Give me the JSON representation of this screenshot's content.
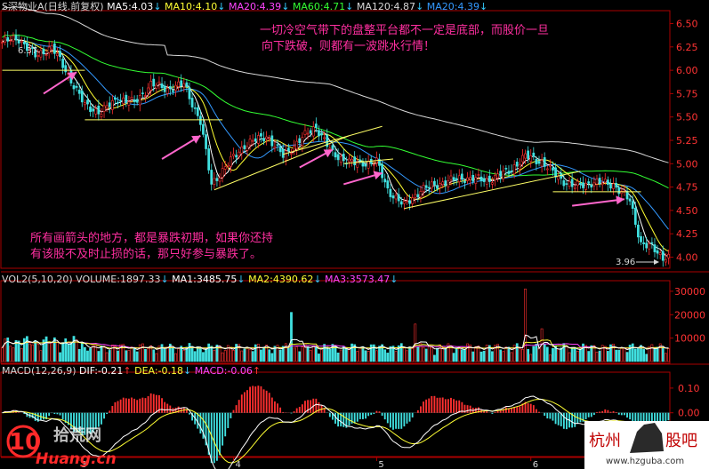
{
  "header": {
    "main": [
      {
        "text": "S深物业A(日线.前复权)",
        "color": "#d8d8d8"
      },
      {
        "text": "MA5:4.03",
        "color": "#ffffff",
        "arrow": "down"
      },
      {
        "text": "MA10:4.10",
        "color": "#ffff33",
        "arrow": "down"
      },
      {
        "text": "MA20:4.39",
        "color": "#ff44ff",
        "arrow": "down"
      },
      {
        "text": "MA60:4.71",
        "color": "#33ff33",
        "arrow": "down"
      },
      {
        "text": "MA120:4.87",
        "color": "#d8d8d8",
        "arrow": "down"
      },
      {
        "text": "MA20:4.39",
        "color": "#3399ff",
        "arrow": "down"
      }
    ],
    "volume": [
      {
        "text": "VOL2(5,10,20)",
        "color": "#d8d8d8"
      },
      {
        "text": "VOLUME:1897.33",
        "color": "#d8d8d8",
        "arrow": "down"
      },
      {
        "text": "MA1:3485.75",
        "color": "#ffffff",
        "arrow": "down"
      },
      {
        "text": "MA2:4390.62",
        "color": "#ffff33",
        "arrow": "down"
      },
      {
        "text": "MA3:3573.47",
        "color": "#ff44ff",
        "arrow": "down"
      }
    ],
    "macd": [
      {
        "text": "MACD(12,26,9)",
        "color": "#d8d8d8"
      },
      {
        "text": "DIF:-0.21",
        "color": "#ffffff",
        "arrow": "up"
      },
      {
        "text": "DEA:-0.18",
        "color": "#ffff33",
        "arrow": "down"
      },
      {
        "text": "MACD:-0.06",
        "color": "#ff44ff",
        "arrow": "up"
      }
    ]
  },
  "annotations": {
    "top_note": [
      "一切冷空气带下的盘整平台都不一定是底部，而股价一旦",
      "向下跌破，则都有一波跳水行情！"
    ],
    "bottom_note": [
      "所有画箭头的地方，都是暴跌初期，如果你还持",
      "有该股不及时止损的话，那只好参与暴跌了。"
    ],
    "high_label": "6.37",
    "low_label": "3.96"
  },
  "chart_data": [
    {
      "type": "candlestick",
      "title": "S深物业A(日线.前复权)",
      "y_ticks": [
        "6.50",
        "6.25",
        "6.00",
        "5.75",
        "5.50",
        "5.25",
        "5.00",
        "4.75",
        "4.50",
        "4.25",
        "4.00"
      ],
      "ylim": [
        3.9,
        6.6
      ],
      "x_ticks": [
        "3",
        "4",
        "5",
        "6",
        "7",
        "8",
        "9"
      ],
      "x_tick_positions": [
        14,
        42,
        68,
        96,
        124,
        152,
        180
      ],
      "n_bars": 243,
      "high": 6.37,
      "low": 3.96,
      "key_points": [
        {
          "bar": 0,
          "close": 6.3
        },
        {
          "bar": 6,
          "close": 6.34
        },
        {
          "bar": 12,
          "close": 6.15
        },
        {
          "bar": 18,
          "close": 6.25
        },
        {
          "bar": 24,
          "close": 5.95
        },
        {
          "bar": 30,
          "close": 5.62
        },
        {
          "bar": 36,
          "close": 5.55
        },
        {
          "bar": 42,
          "close": 5.7
        },
        {
          "bar": 48,
          "close": 5.65
        },
        {
          "bar": 54,
          "close": 5.85
        },
        {
          "bar": 60,
          "close": 5.8
        },
        {
          "bar": 66,
          "close": 5.85
        },
        {
          "bar": 72,
          "close": 5.45
        },
        {
          "bar": 76,
          "close": 4.78
        },
        {
          "bar": 82,
          "close": 5.0
        },
        {
          "bar": 88,
          "close": 5.2
        },
        {
          "bar": 96,
          "close": 5.3
        },
        {
          "bar": 102,
          "close": 5.08
        },
        {
          "bar": 108,
          "close": 5.25
        },
        {
          "bar": 114,
          "close": 5.4
        },
        {
          "bar": 120,
          "close": 5.1
        },
        {
          "bar": 128,
          "close": 5.0
        },
        {
          "bar": 136,
          "close": 5.02
        },
        {
          "bar": 140,
          "close": 4.72
        },
        {
          "bar": 146,
          "close": 4.55
        },
        {
          "bar": 152,
          "close": 4.72
        },
        {
          "bar": 160,
          "close": 4.8
        },
        {
          "bar": 168,
          "close": 4.85
        },
        {
          "bar": 176,
          "close": 4.82
        },
        {
          "bar": 184,
          "close": 4.92
        },
        {
          "bar": 190,
          "close": 5.08
        },
        {
          "bar": 196,
          "close": 5.02
        },
        {
          "bar": 202,
          "close": 4.85
        },
        {
          "bar": 208,
          "close": 4.75
        },
        {
          "bar": 214,
          "close": 4.8
        },
        {
          "bar": 222,
          "close": 4.78
        },
        {
          "bar": 228,
          "close": 4.6
        },
        {
          "bar": 232,
          "close": 4.15
        },
        {
          "bar": 236,
          "close": 4.1
        },
        {
          "bar": 240,
          "close": 4.0
        },
        {
          "bar": 242,
          "close": 4.03
        }
      ],
      "ma_last": {
        "MA5": 4.03,
        "MA10": 4.1,
        "MA20": 4.39,
        "MA60": 4.71,
        "MA120": 4.87
      },
      "overlay_lines": [
        {
          "kind": "horizontal",
          "bar0": 0,
          "bar1": 30,
          "price": 6.0,
          "color": "#ffff66"
        },
        {
          "kind": "horizontal",
          "bar0": 30,
          "bar1": 80,
          "price": 5.47,
          "color": "#ffff66"
        },
        {
          "kind": "horizontal",
          "bar0": 200,
          "bar1": 232,
          "price": 4.7,
          "color": "#ffff66"
        },
        {
          "kind": "trend",
          "bar0": 77,
          "p0": 4.72,
          "bar1": 126,
          "p1": 5.3,
          "color": "#ffff66"
        },
        {
          "kind": "trend",
          "bar0": 102,
          "p0": 5.1,
          "bar1": 138,
          "p1": 5.4,
          "color": "#ffff66"
        },
        {
          "kind": "trend",
          "bar0": 124,
          "p0": 5.0,
          "bar1": 142,
          "p1": 5.05,
          "color": "#ffff66"
        },
        {
          "kind": "trend",
          "bar0": 146,
          "p0": 4.52,
          "bar1": 210,
          "p1": 4.92,
          "color": "#ffff66"
        }
      ],
      "arrows": [
        {
          "bar0": 15,
          "p0": 5.75,
          "bar1": 27,
          "p1": 5.98
        },
        {
          "bar0": 58,
          "p0": 5.05,
          "bar1": 72,
          "p1": 5.3
        },
        {
          "bar0": 108,
          "p0": 4.96,
          "bar1": 120,
          "p1": 5.15
        },
        {
          "bar0": 124,
          "p0": 4.78,
          "bar1": 138,
          "p1": 4.9
        },
        {
          "bar0": 207,
          "p0": 4.55,
          "bar1": 226,
          "p1": 4.62
        }
      ]
    },
    {
      "type": "bar",
      "title": "VOL2(5,10,20)",
      "y_ticks": [
        "30000",
        "20000",
        "10000"
      ],
      "ylim": [
        0,
        33000
      ],
      "last_volume": 1897.33,
      "ma_last": {
        "MA1": 3485.75,
        "MA2": 4390.62,
        "MA3": 3573.47
      },
      "spikes": [
        {
          "bar": 105,
          "value": 21000
        },
        {
          "bar": 150,
          "value": 16000
        },
        {
          "bar": 190,
          "value": 31000
        },
        {
          "bar": 196,
          "value": 14000
        }
      ],
      "base_level": 6000
    },
    {
      "type": "bar",
      "title": "MACD(12,26,9)",
      "y_ticks": [
        "0.10",
        "0.00",
        "-0.10"
      ],
      "ylim": [
        -0.17,
        0.15
      ],
      "dif_last": -0.21,
      "dea_last": -0.18,
      "macd_last": -0.06
    }
  ],
  "watermark_left": {
    "logo_text": "10",
    "brand": "拾荒网",
    "url": "Huang.cn"
  },
  "watermark_right": {
    "brand_left": "杭州",
    "brand_right": "股吧",
    "url": "www.hzguba.com"
  }
}
